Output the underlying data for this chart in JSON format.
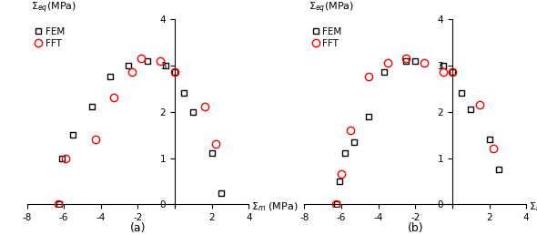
{
  "subplot_a": {
    "FEM_x": [
      -6.25,
      -6.1,
      -5.5,
      -4.5,
      -3.5,
      -2.5,
      -1.5,
      -0.5,
      0.0,
      0.5,
      1.0,
      2.0,
      2.5
    ],
    "FEM_y": [
      0.0,
      1.0,
      1.5,
      2.1,
      2.75,
      3.0,
      3.1,
      3.0,
      2.85,
      2.4,
      2.0,
      1.1,
      0.25
    ],
    "FFT_x": [
      -6.3,
      -5.9,
      -4.3,
      -3.3,
      -2.3,
      -1.8,
      -0.8,
      0.0,
      1.6,
      2.2
    ],
    "FFT_y": [
      0.0,
      1.0,
      1.4,
      2.3,
      2.85,
      3.15,
      3.1,
      2.85,
      2.1,
      1.3
    ]
  },
  "subplot_b": {
    "FEM_x": [
      -6.25,
      -6.1,
      -5.8,
      -5.3,
      -4.5,
      -3.7,
      -2.5,
      -2.0,
      -0.5,
      0.0,
      0.5,
      1.0,
      2.0,
      2.5
    ],
    "FEM_y": [
      0.0,
      0.5,
      1.1,
      1.35,
      1.9,
      2.85,
      3.1,
      3.1,
      3.0,
      2.85,
      2.4,
      2.05,
      1.4,
      0.75
    ],
    "FFT_x": [
      -6.3,
      -6.0,
      -5.5,
      -4.5,
      -3.5,
      -2.5,
      -1.5,
      -0.5,
      0.0,
      1.5,
      2.2
    ],
    "FFT_y": [
      0.0,
      0.65,
      1.6,
      2.75,
      3.05,
      3.15,
      3.05,
      2.85,
      2.85,
      2.15,
      1.2
    ]
  },
  "xlim": [
    -8,
    4
  ],
  "ylim": [
    -0.05,
    4
  ],
  "xticks": [
    -8,
    -6,
    -4,
    -2,
    0,
    2,
    4
  ],
  "yticks": [
    0,
    1,
    2,
    3,
    4
  ],
  "label_a": "(a)",
  "label_b": "(b)",
  "fem_color": "black",
  "fft_color": "red",
  "marker_fem": "s",
  "marker_fft": "o",
  "markersize_fem": 4.5,
  "markersize_fft": 6,
  "legend_fontsize": 7.5,
  "tick_fontsize": 7.5,
  "axis_label_fontsize": 8
}
